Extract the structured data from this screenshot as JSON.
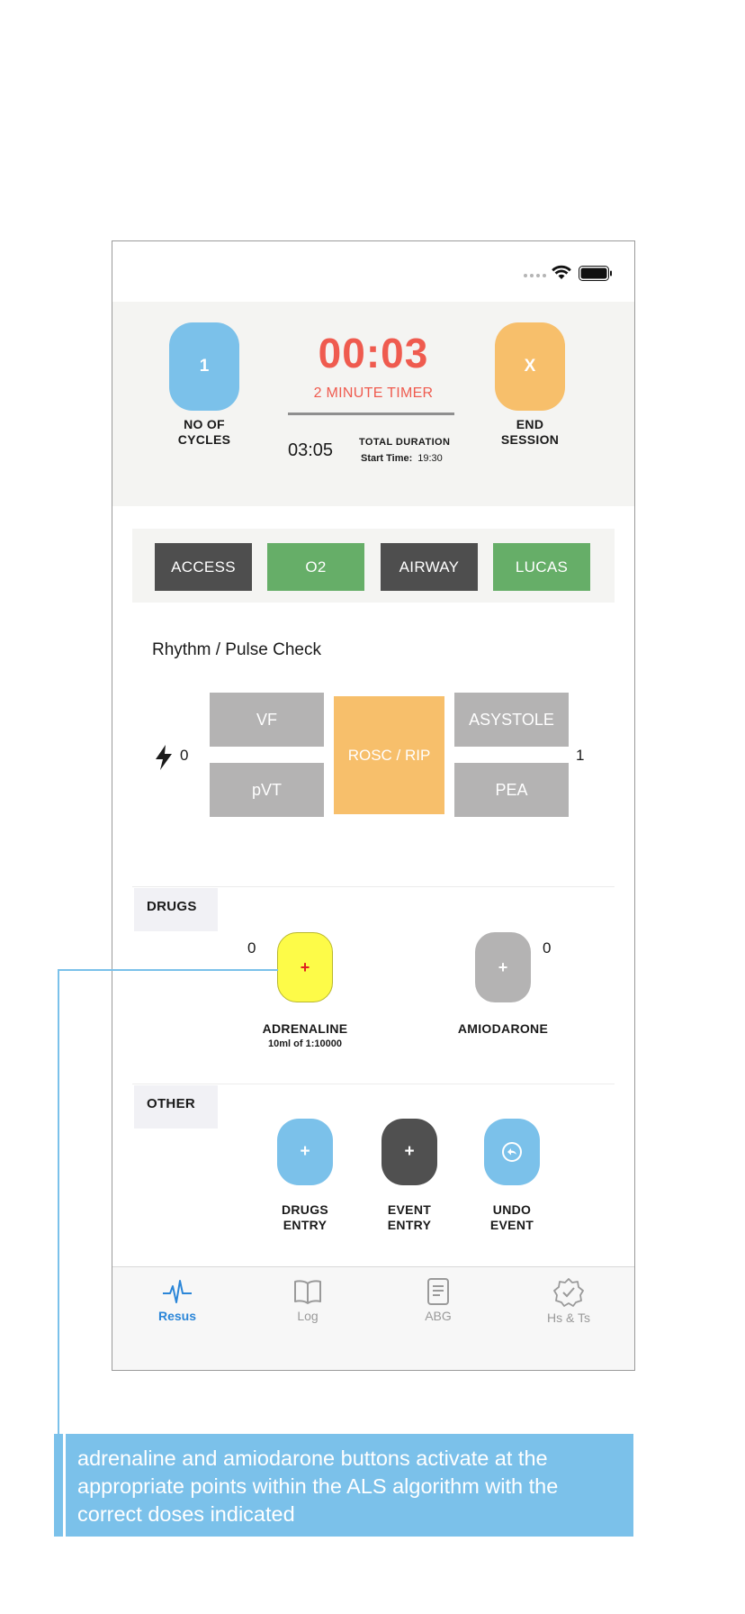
{
  "header": {
    "cycles_value": "1",
    "cycles_label_1": "NO OF",
    "cycles_label_2": "CYCLES",
    "timer_value": "00:03",
    "timer_label": "2 MINUTE TIMER",
    "total_duration_value": "03:05",
    "total_duration_label": "TOTAL DURATION",
    "start_time_label": "Start Time:",
    "start_time_value": "19:30",
    "end_button": "X",
    "end_label_1": "END",
    "end_label_2": "SESSION"
  },
  "actions": [
    "ACCESS",
    "O2",
    "AIRWAY",
    "LUCAS"
  ],
  "rhythm": {
    "title": "Rhythm / Pulse Check",
    "shock_count": "0",
    "vf": "VF",
    "pvt": "pVT",
    "rosc": "ROSC / RIP",
    "asystole": "ASYSTOLE",
    "pea": "PEA",
    "non_shock_count": "1"
  },
  "drugs": {
    "section": "DRUGS",
    "adrenaline_count": "0",
    "adrenaline_button": "+",
    "adrenaline_label": "ADRENALINE",
    "adrenaline_dose": "10ml of 1:10000",
    "amiodarone_count": "0",
    "amiodarone_button": "+",
    "amiodarone_label": "AMIODARONE"
  },
  "other": {
    "section": "OTHER",
    "drugs_entry_button": "+",
    "drugs_entry_1": "DRUGS",
    "drugs_entry_2": "ENTRY",
    "event_entry_button": "+",
    "event_entry_1": "EVENT",
    "event_entry_2": "ENTRY",
    "undo_event_1": "UNDO",
    "undo_event_2": "EVENT"
  },
  "tabs": [
    "Resus",
    "Log",
    "ABG",
    "Hs & Ts"
  ],
  "annotation": "adrenaline and amiodarone buttons activate at the appropriate points within the ALS algorithm with the correct doses indicated",
  "colors": {
    "timer_red": "#ef5b4f",
    "cycles_blue": "#7bc1ea",
    "end_orange": "#f7bf6b",
    "action_dark": "#4e4e4e",
    "action_green": "#66ae68",
    "rhythm_grey": "#b4b3b3",
    "adrenaline_yellow": "#fdfb48",
    "tab_active_blue": "#2b86d8"
  }
}
